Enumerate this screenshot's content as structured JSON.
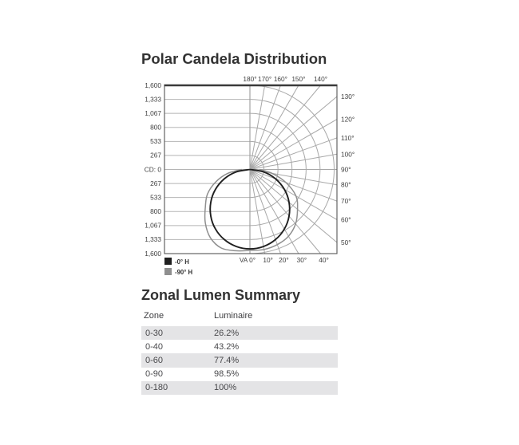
{
  "polar_chart": {
    "title": "Polar Candela Distribution",
    "cd_axis_labels": [
      "1,600",
      "1,333",
      "1,067",
      "800",
      "533",
      "267",
      "CD: 0",
      "267",
      "533",
      "800",
      "1,067",
      "1,333",
      "1,600"
    ],
    "va_zero_label": "VA 0°",
    "legend": [
      {
        "label": "-0° H",
        "color": "#1f1f1f"
      },
      {
        "label": "-90° H",
        "color": "#8f8f8f"
      }
    ],
    "chart_data": {
      "type": "line",
      "subtype": "polar-candela-distribution",
      "cd_max": 1600,
      "cd_ring_values": [
        267,
        533,
        800,
        1067,
        1333,
        1600
      ],
      "angle_step_deg": 10,
      "angle_labels": {
        "top": [
          "180°",
          "170°",
          "160°",
          "150°",
          "140°"
        ],
        "right": [
          "130°",
          "120°",
          "110°",
          "100°",
          "90°",
          "80°",
          "70°",
          "60°",
          "50°"
        ],
        "bottom": [
          "10°",
          "20°",
          "30°",
          "40°"
        ]
      },
      "grid_color": "#a8a8a8",
      "series": [
        {
          "name": "-0° H",
          "color": "#1f1f1f",
          "angles_deg": [
            -90,
            -80,
            -70,
            -60,
            -50,
            -40,
            -30,
            -20,
            -10,
            0,
            10,
            20,
            30,
            40,
            50,
            60,
            70,
            80,
            90
          ],
          "candela": [
            0,
            262,
            516,
            755,
            971,
            1157,
            1308,
            1419,
            1487,
            1510,
            1487,
            1419,
            1308,
            1157,
            971,
            755,
            516,
            262,
            0
          ]
        },
        {
          "name": "-90° H",
          "color": "#8f8f8f",
          "angles_deg": [
            -90,
            -80,
            -70,
            -60,
            -50,
            -40,
            -30,
            -20,
            -10,
            0,
            10,
            20,
            30,
            40,
            50,
            60,
            70,
            80,
            90
          ],
          "candela": [
            150,
            430,
            690,
            930,
            1105,
            1320,
            1500,
            1590,
            1570,
            1540,
            1545,
            1520,
            1465,
            1350,
            1180,
            1010,
            730,
            430,
            180
          ]
        }
      ]
    }
  },
  "zonal_table": {
    "title": "Zonal Lumen Summary",
    "columns": [
      "Zone",
      "Luminaire"
    ],
    "rows": [
      {
        "zone": "0-30",
        "luminaire": "26.2%"
      },
      {
        "zone": "0-40",
        "luminaire": "43.2%"
      },
      {
        "zone": "0-60",
        "luminaire": "77.4%"
      },
      {
        "zone": "0-90",
        "luminaire": "98.5%"
      },
      {
        "zone": "0-180",
        "luminaire": "100%"
      }
    ]
  }
}
